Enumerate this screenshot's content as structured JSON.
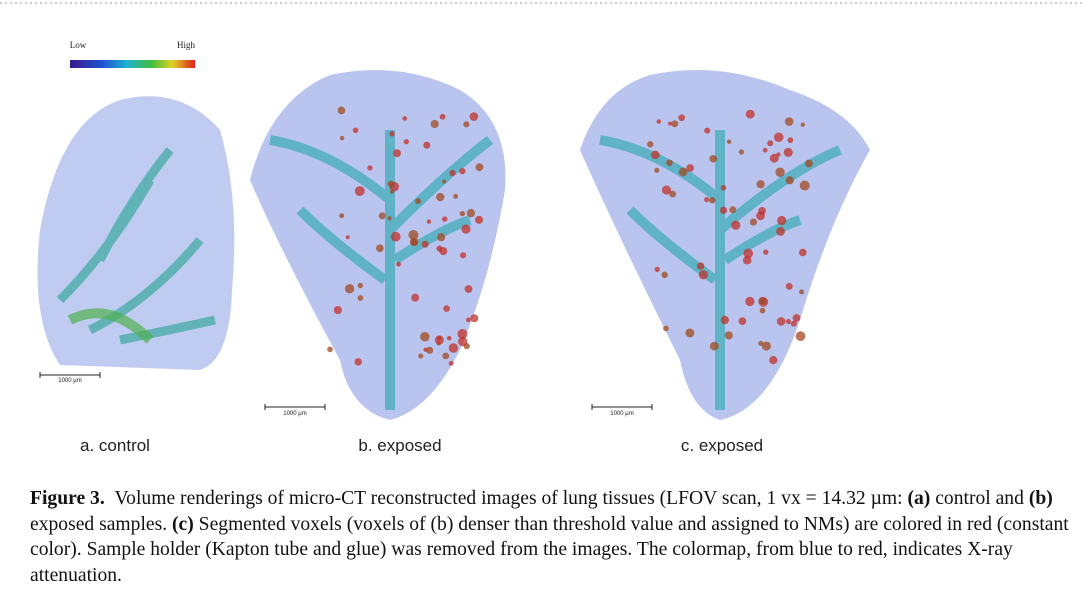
{
  "colorbar": {
    "low": "Low",
    "high": "High"
  },
  "panels": [
    {
      "label": "a. control",
      "scale_bar": "1000 μm"
    },
    {
      "label": "b. exposed",
      "scale_bar": "1000 μm"
    },
    {
      "label": "c. exposed",
      "scale_bar": "1000 μm"
    }
  ],
  "caption": {
    "title": "Figure 3.",
    "segments": [
      {
        "text": "Volume renderings of micro-CT reconstructed images of lung tissues (LFOV scan, 1 vx = 14.32 µm: ",
        "bold": false
      },
      {
        "text": "(a)",
        "bold": true
      },
      {
        "text": " control and ",
        "bold": false
      },
      {
        "text": "(b)",
        "bold": true
      },
      {
        "text": " exposed samples. ",
        "bold": false
      },
      {
        "text": "(c)",
        "bold": true
      },
      {
        "text": " Segmented voxels (voxels of (b) denser than threshold value and assigned to NMs) are colored in red (constant color). Sample holder (Kapton tube and glue) was removed from the images. The colormap, from blue to red, indicates X-ray attenuation.",
        "bold": false
      }
    ]
  }
}
